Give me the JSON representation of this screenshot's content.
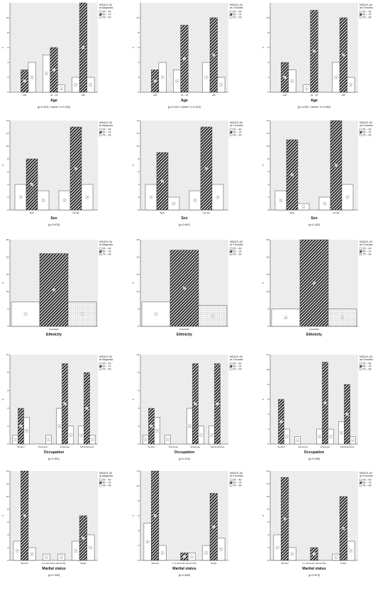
{
  "colors": {
    "plot_bg": "#ececec",
    "bar_white": "#ffffff",
    "bar_hatch": "#222222",
    "bar_dotted": "#d8d8d8"
  },
  "legend_title_line1": "MSQOL-54",
  "legend_items": [
    "25 – 49",
    "50 – 74",
    "75 – 99"
  ],
  "y_axis_letter": "n",
  "chart_data": [
    {
      "type": "bar",
      "legend_sub": "at diagnosis",
      "xlabel": "Age",
      "pvalue": "(p=0.018; Cramer V=0.316)",
      "categories": [
        "≤28",
        "29 – 38",
        "≥39"
      ],
      "ylim": [
        0,
        12
      ],
      "yticks": [
        0,
        2,
        4,
        6,
        8,
        10
      ],
      "series": [
        {
          "name": "25 – 49",
          "values": [
            null,
            5,
            2
          ]
        },
        {
          "name": "50 – 74",
          "values": [
            3,
            6,
            12
          ]
        },
        {
          "name": "75 – 99",
          "values": [
            4,
            1,
            2
          ]
        }
      ]
    },
    {
      "type": "bar",
      "legend_sub": "at 3 months",
      "xlabel": "Age",
      "pvalue": "(p=0.024; Cramer V=0.324)",
      "categories": [
        "≤28",
        "29 – 38",
        "≥39"
      ],
      "ylim": [
        0,
        12
      ],
      "yticks": [
        0,
        2,
        4,
        6,
        8,
        10
      ],
      "series": [
        {
          "name": "25 – 49",
          "values": [
            null,
            3,
            4
          ]
        },
        {
          "name": "50 – 74",
          "values": [
            3,
            9,
            10
          ]
        },
        {
          "name": "75 – 99",
          "values": [
            4,
            null,
            2
          ]
        }
      ]
    },
    {
      "type": "bar",
      "legend_sub": "at 6 months",
      "xlabel": "Age",
      "pvalue": "(p=0.052; Cramer V=0.052)",
      "categories": [
        "≤28",
        "29 – 38",
        "≥39"
      ],
      "ylim": [
        0,
        12
      ],
      "yticks": [
        0,
        2,
        4,
        6,
        8,
        10
      ],
      "series": [
        {
          "name": "25 – 49",
          "values": [
            null,
            1,
            4
          ]
        },
        {
          "name": "50 – 74",
          "values": [
            4,
            11,
            10
          ]
        },
        {
          "name": "75 – 99",
          "values": [
            3,
            null,
            2
          ]
        }
      ]
    },
    {
      "type": "bar",
      "legend_sub": "at diagnosis",
      "xlabel": "Sex",
      "pvalue": "(p=0.678)",
      "categories": [
        "Male",
        "Female"
      ],
      "ylim": [
        0,
        14
      ],
      "yticks": [
        0,
        2,
        4,
        6,
        8,
        10,
        12,
        14
      ],
      "series": [
        {
          "name": "25 – 49",
          "values": [
            4,
            3
          ]
        },
        {
          "name": "50 – 74",
          "values": [
            8,
            13
          ]
        },
        {
          "name": "75 – 99",
          "values": [
            3,
            4
          ]
        }
      ]
    },
    {
      "type": "bar",
      "legend_sub": "at 3 months",
      "xlabel": "Sex",
      "pvalue": "(p=0.697)",
      "categories": [
        "Male",
        "Female"
      ],
      "ylim": [
        0,
        14
      ],
      "yticks": [
        0,
        2,
        4,
        6,
        8,
        10,
        12,
        14
      ],
      "series": [
        {
          "name": "25 – 49",
          "values": [
            4,
            3
          ]
        },
        {
          "name": "50 – 74",
          "values": [
            9,
            13
          ]
        },
        {
          "name": "75 – 99",
          "values": [
            2,
            4
          ]
        }
      ]
    },
    {
      "type": "bar",
      "legend_sub": "at 6 months",
      "xlabel": "Sex",
      "pvalue": "(p=0.432)",
      "categories": [
        "Male",
        "Female"
      ],
      "ylim": [
        0,
        14
      ],
      "yticks": [
        0,
        2,
        4,
        6,
        8,
        10,
        12,
        14
      ],
      "series": [
        {
          "name": "25 – 49",
          "values": [
            3,
            2
          ]
        },
        {
          "name": "50 – 74",
          "values": [
            11,
            14
          ]
        },
        {
          "name": "75 – 99",
          "values": [
            1,
            4
          ]
        }
      ]
    },
    {
      "type": "bar",
      "legend_sub": "at diagnosis",
      "xlabel": "Ethnicity",
      "pvalue": "",
      "categories": [
        "Caucasian"
      ],
      "ylim": [
        0,
        25
      ],
      "yticks": [
        0,
        5,
        10,
        15,
        20,
        25
      ],
      "series": [
        {
          "name": "25 – 49",
          "values": [
            7
          ]
        },
        {
          "name": "50 – 74",
          "values": [
            21
          ]
        },
        {
          "name": "75 – 99",
          "values": [
            7
          ]
        }
      ]
    },
    {
      "type": "bar",
      "legend_sub": "at 3 months",
      "xlabel": "Ethnicity",
      "pvalue": "",
      "categories": [
        "Caucasian"
      ],
      "ylim": [
        0,
        25
      ],
      "yticks": [
        0,
        5,
        10,
        15,
        20,
        25
      ],
      "series": [
        {
          "name": "25 – 49",
          "values": [
            7
          ]
        },
        {
          "name": "50 – 74",
          "values": [
            22
          ]
        },
        {
          "name": "75 – 99",
          "values": [
            6
          ]
        }
      ]
    },
    {
      "type": "bar",
      "legend_sub": "at 6 months",
      "xlabel": "Ethnicity",
      "pvalue": "",
      "categories": [
        "Caucasian"
      ],
      "ylim": [
        0,
        25
      ],
      "yticks": [
        0,
        5,
        10,
        15,
        20,
        25
      ],
      "series": [
        {
          "name": "25 – 49",
          "values": [
            5
          ]
        },
        {
          "name": "50 – 74",
          "values": [
            25
          ]
        },
        {
          "name": "75 – 99",
          "values": [
            5
          ]
        }
      ]
    },
    {
      "type": "bar",
      "legend_sub": "at diagnosis",
      "xlabel": "Occupation",
      "pvalue": "(p=0.301)",
      "categories": [
        "Student",
        "Pensioner",
        "Employee",
        "Self-Employed"
      ],
      "ylim": [
        0,
        10
      ],
      "yticks": [
        0,
        2,
        4,
        6,
        8,
        10
      ],
      "series": [
        {
          "name": "25 – 49",
          "values": [
            1,
            null,
            4,
            2
          ]
        },
        {
          "name": "50 – 74",
          "values": [
            4,
            null,
            9,
            8
          ]
        },
        {
          "name": "75 – 99",
          "values": [
            3,
            1,
            2,
            1
          ]
        }
      ]
    },
    {
      "type": "bar",
      "legend_sub": "at 3 months",
      "xlabel": "Occupation",
      "pvalue": "(p=0.119)",
      "categories": [
        "Student",
        "Pensioner",
        "Employee",
        "Self-Employed"
      ],
      "ylim": [
        0,
        10
      ],
      "yticks": [
        0,
        2,
        4,
        6,
        8,
        10
      ],
      "series": [
        {
          "name": "25 – 49",
          "values": [
            1,
            1,
            4,
            2
          ]
        },
        {
          "name": "50 – 74",
          "values": [
            4,
            null,
            9,
            9
          ]
        },
        {
          "name": "75 – 99",
          "values": [
            3,
            null,
            2,
            null
          ]
        }
      ]
    },
    {
      "type": "bar",
      "legend_sub": "at 6 months",
      "xlabel": "Occupation",
      "pvalue": "(p=0.058)",
      "categories": [
        "Student",
        "Pensioner",
        "Employee",
        "Self-Employed"
      ],
      "ylim": [
        0,
        12
      ],
      "yticks": [
        0,
        2,
        4,
        6,
        8,
        10,
        12
      ],
      "series": [
        {
          "name": "25 – 49",
          "values": [
            null,
            1,
            2,
            3
          ]
        },
        {
          "name": "50 – 74",
          "values": [
            6,
            null,
            11,
            8
          ]
        },
        {
          "name": "75 – 99",
          "values": [
            2,
            null,
            2,
            1
          ]
        }
      ]
    },
    {
      "type": "bar",
      "legend_sub": "at diagnosis",
      "xlabel": "Marital status",
      "pvalue": "(p=0.255)",
      "categories": [
        "Married",
        "In a domestic partnership",
        "Single"
      ],
      "ylim": [
        0,
        14
      ],
      "yticks": [
        0,
        2,
        4,
        6,
        8,
        10,
        12,
        14
      ],
      "series": [
        {
          "name": "25 – 49",
          "values": [
            3,
            1,
            3
          ]
        },
        {
          "name": "50 – 74",
          "values": [
            14,
            null,
            7
          ]
        },
        {
          "name": "75 – 99",
          "values": [
            2,
            1,
            4
          ]
        }
      ]
    },
    {
      "type": "bar",
      "legend_sub": "at 3 months",
      "xlabel": "Marital status",
      "pvalue": "(p=0.569)",
      "categories": [
        "Married",
        "In a domestic partnership",
        "Single"
      ],
      "ylim": [
        0,
        12
      ],
      "yticks": [
        0,
        2,
        4,
        6,
        8,
        10,
        12
      ],
      "series": [
        {
          "name": "25 – 49",
          "values": [
            5,
            null,
            2
          ]
        },
        {
          "name": "50 – 74",
          "values": [
            12,
            1,
            9
          ]
        },
        {
          "name": "75 – 99",
          "values": [
            2,
            1,
            3
          ]
        }
      ]
    },
    {
      "type": "bar",
      "legend_sub": "at 6 months",
      "xlabel": "Marital status",
      "pvalue": "(p=0.673)",
      "categories": [
        "Married",
        "In a domestic partnership",
        "Single"
      ],
      "ylim": [
        0,
        14
      ],
      "yticks": [
        0,
        2,
        4,
        6,
        8,
        10,
        12,
        14
      ],
      "series": [
        {
          "name": "25 – 49",
          "values": [
            4,
            null,
            1
          ]
        },
        {
          "name": "50 – 74",
          "values": [
            13,
            2,
            10
          ]
        },
        {
          "name": "75 – 99",
          "values": [
            2,
            null,
            3
          ]
        }
      ]
    }
  ]
}
